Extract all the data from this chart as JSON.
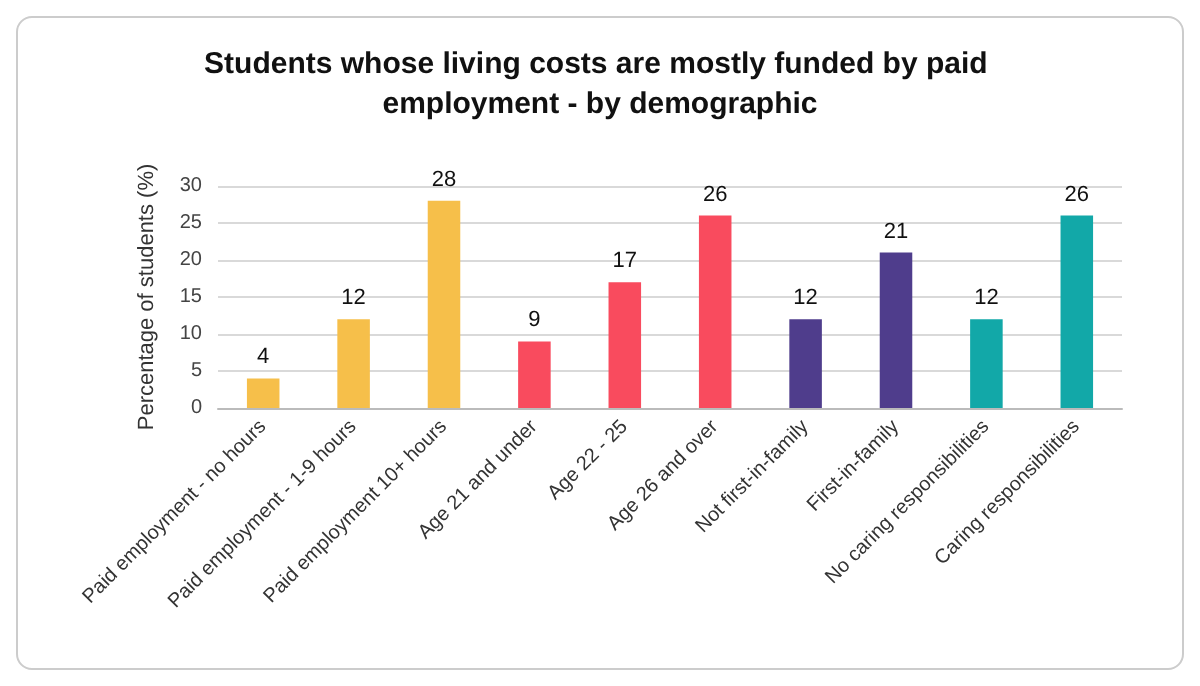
{
  "chart_data": {
    "type": "bar",
    "title": "Students whose living costs are mostly funded by paid employment - by demographic",
    "ylabel": "Percentage of students (%)",
    "categories": [
      "Paid employment - no hours",
      "Paid employment - 1-9 hours",
      "Paid employment 10+ hours",
      "Age 21 and under",
      "Age 22 - 25",
      "Age 26 and over",
      "Not first-in-family",
      "First-in-family",
      "No caring responsibilities",
      "Caring responsibilities"
    ],
    "values": [
      4,
      12,
      28,
      9,
      17,
      26,
      12,
      21,
      12,
      26
    ],
    "colors": [
      "#f6bf4a",
      "#f6bf4a",
      "#f6bf4a",
      "#f94b5e",
      "#f94b5e",
      "#f94b5e",
      "#4f3d8c",
      "#4f3d8c",
      "#12a8a8",
      "#12a8a8"
    ],
    "ylim": [
      0,
      30
    ],
    "yticks": [
      0,
      5,
      10,
      15,
      20,
      25,
      30
    ],
    "grid": "y",
    "data_labels": true
  }
}
